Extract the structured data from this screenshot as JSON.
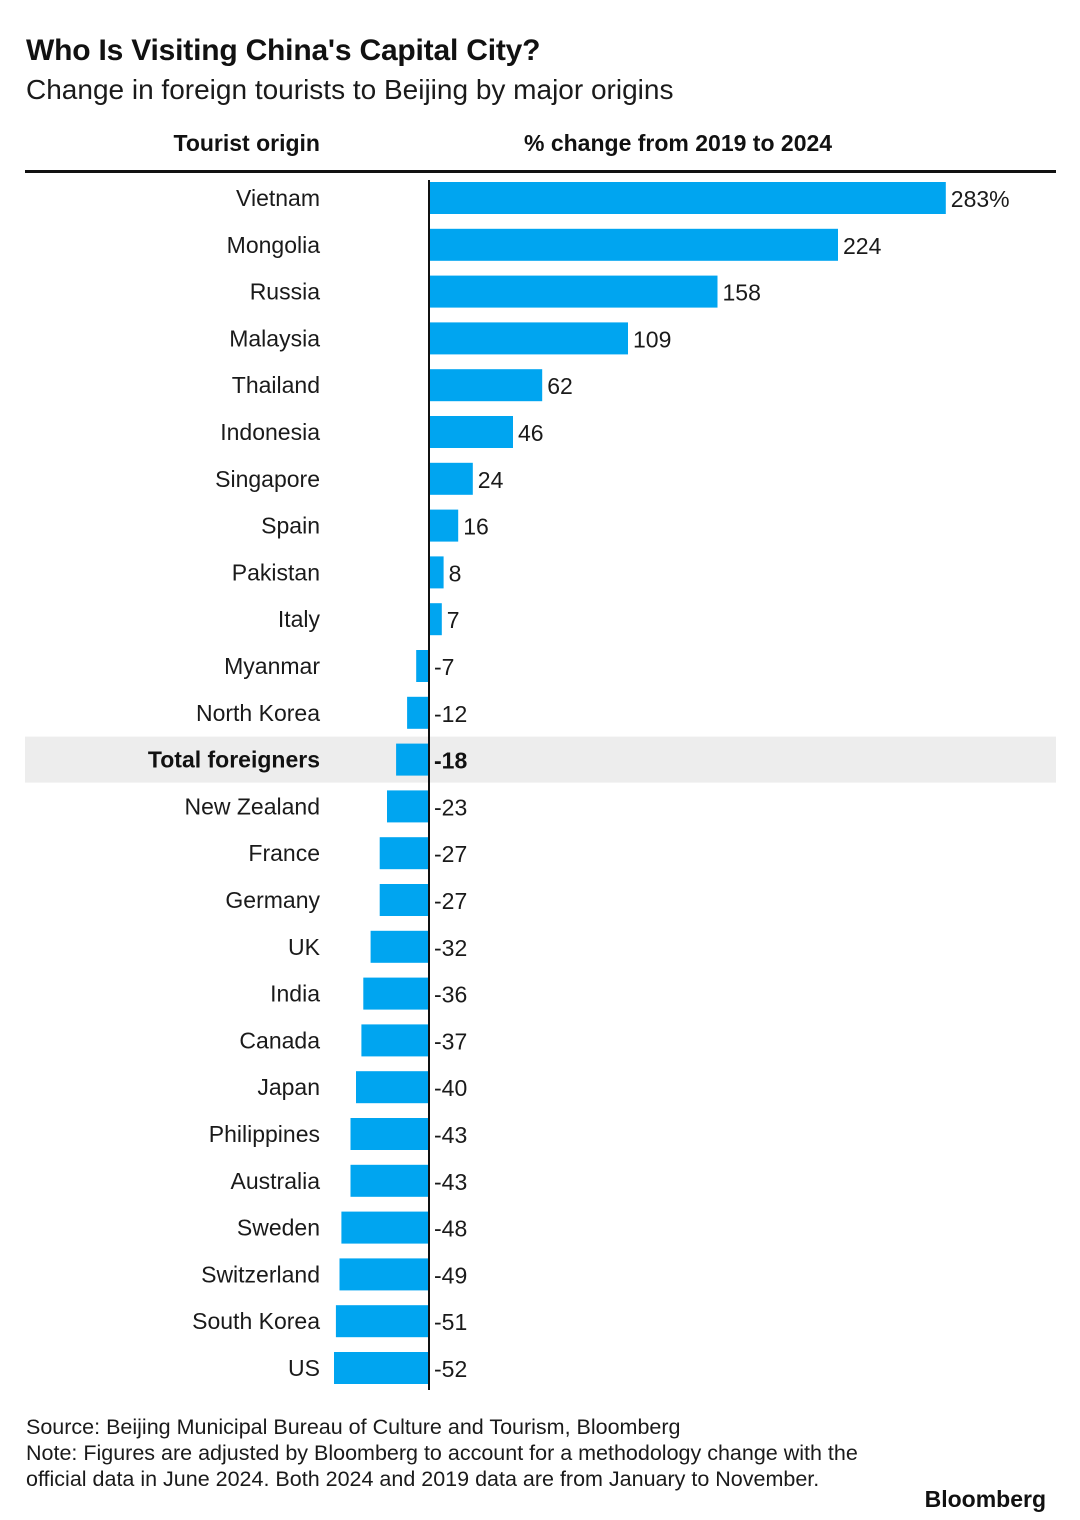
{
  "chart_data": {
    "type": "bar",
    "orientation": "horizontal",
    "title": "Who Is Visiting China's Capital City?",
    "subtitle": "Change in foreign tourists to Beijing by major origins",
    "category_header": "Tourist origin",
    "value_header": "% change from 2019 to 2024",
    "unit_suffix_first": "%",
    "highlight_category": "Total foreigners",
    "categories": [
      "Vietnam",
      "Mongolia",
      "Russia",
      "Malaysia",
      "Thailand",
      "Indonesia",
      "Singapore",
      "Spain",
      "Pakistan",
      "Italy",
      "Myanmar",
      "North Korea",
      "Total foreigners",
      "New Zealand",
      "France",
      "Germany",
      "UK",
      "India",
      "Canada",
      "Japan",
      "Philippines",
      "Australia",
      "Sweden",
      "Switzerland",
      "South Korea",
      "US"
    ],
    "values": [
      283,
      224,
      158,
      109,
      62,
      46,
      24,
      16,
      8,
      7,
      -7,
      -12,
      -18,
      -23,
      -27,
      -27,
      -32,
      -36,
      -37,
      -40,
      -43,
      -43,
      -48,
      -49,
      -51,
      -52
    ],
    "xlim": [
      -52,
      283
    ],
    "bar_color": "#00a5f0",
    "highlight_color": "#ededed"
  },
  "footer": {
    "source": "Source: Beijing Municipal Bureau of Culture and Tourism, Bloomberg",
    "note": "Note: Figures are adjusted by Bloomberg to account for a methodology change with the official data in June 2024. Both 2024 and 2019 data are from January to November.",
    "brand": "Bloomberg"
  }
}
